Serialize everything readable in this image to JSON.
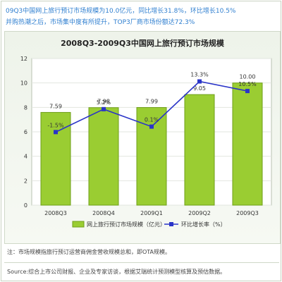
{
  "headline": {
    "line1": "09Q3中国网上旅行预订市场规模为10.0亿元，同比增长31.8%，环比增长10.5%",
    "line2": "并购热潮之后，市场集中度有所提升，TOP3厂商市场份额达72.3%"
  },
  "note": "注：市场规模指旅行预订运营商佣金营收规模总和，即OTA规模。",
  "source": "Source:综合上市公司财报、企业及专家访谈，根据艾瑞统计预测模型核算及预估数据。",
  "colors": {
    "bar": "#9acd32",
    "bar_dark": "#6f9f1a",
    "line": "#2a34c8",
    "headline": "#2f7fd0"
  },
  "chart_data": {
    "type": "bar",
    "title": "2008Q3-2009Q3中国网上旅行预订市场规模",
    "categories": [
      "2008Q3",
      "2008Q4",
      "2009Q1",
      "2009Q2",
      "2009Q3"
    ],
    "series": [
      {
        "name": "网上旅行预订市场规模（亿元）",
        "type": "bar",
        "values": [
          7.59,
          7.98,
          7.99,
          9.05,
          10.0
        ],
        "labels": [
          "7.59",
          "7.98",
          "7.99",
          "9.05",
          "10.00"
        ]
      },
      {
        "name": "环比增长率（%）",
        "type": "line",
        "values": [
          -1.5,
          5.2,
          0.1,
          13.3,
          10.5
        ],
        "labels": [
          "-1.5%",
          "5.2%",
          "0.1%",
          "13.3%",
          "10.5%"
        ]
      }
    ],
    "ylim": [
      0,
      12
    ],
    "yticks": [
      "0",
      "2",
      "4",
      "6",
      "8",
      "10",
      "12"
    ],
    "ytick_values": [
      0,
      2,
      4,
      6,
      8,
      10,
      12
    ],
    "grid": true,
    "legend": "bottom"
  }
}
